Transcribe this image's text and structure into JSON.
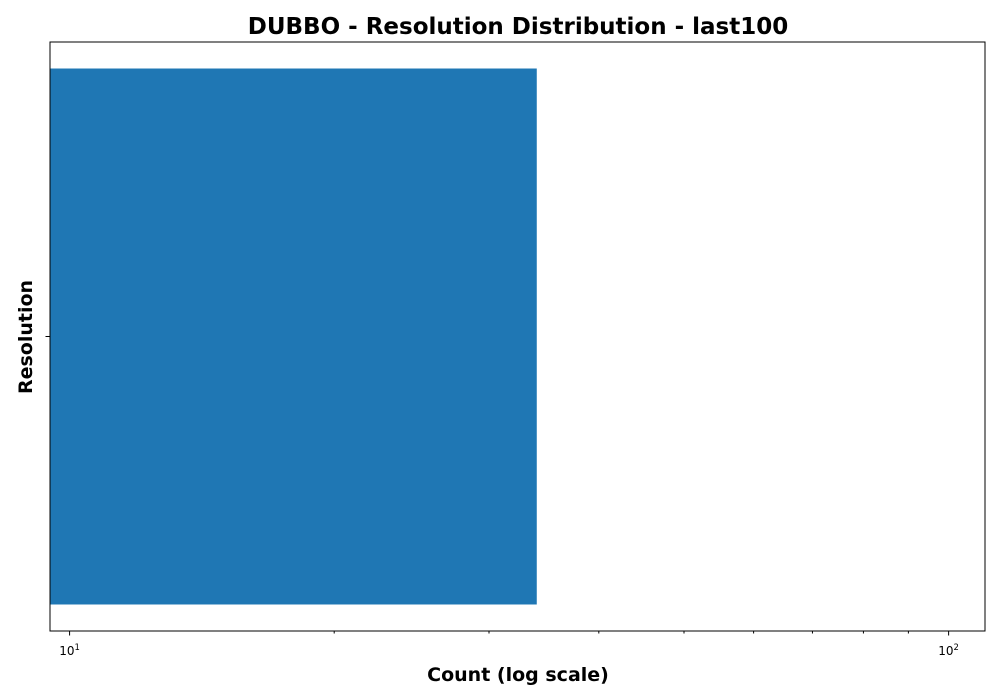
{
  "chart_data": {
    "type": "bar",
    "orientation": "horizontal",
    "title": "DUBBO - Resolution Distribution - last100",
    "xlabel": "Count (log scale)",
    "ylabel": "Resolution",
    "x_scale": "log",
    "xlim": [
      9.5,
      110
    ],
    "categories": [
      ""
    ],
    "values": [
      34
    ],
    "x_ticks": [
      {
        "value": 10,
        "base": "10",
        "exp": "1"
      },
      {
        "value": 100,
        "base": "10",
        "exp": "2"
      }
    ],
    "bar_color": "#1f77b4",
    "grid": false,
    "legend": "none"
  }
}
